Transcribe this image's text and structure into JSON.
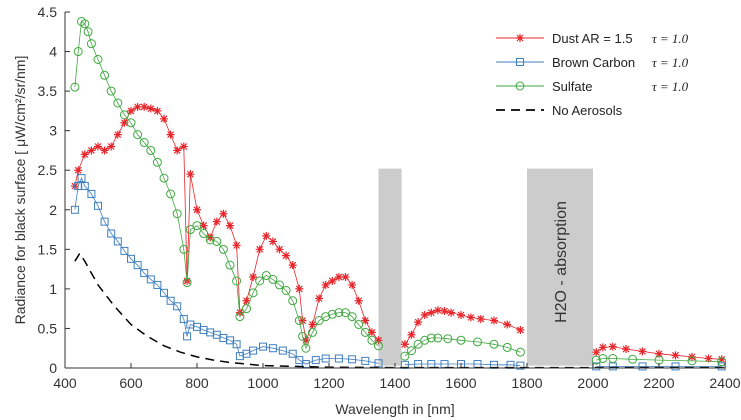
{
  "chart_data": {
    "type": "scatter",
    "title": "",
    "xlabel": "Wavelength in [nm]",
    "ylabel": "Radiance for black surface [ μW/cm²/sr/nm]",
    "xlim": [
      400,
      2400
    ],
    "ylim": [
      0,
      4.5
    ],
    "xticks": [
      400,
      600,
      800,
      1000,
      1200,
      1400,
      1600,
      1800,
      2000,
      2200,
      2400
    ],
    "yticks": [
      0,
      0.5,
      1,
      1.5,
      2,
      2.5,
      3,
      3.5,
      4,
      4.5
    ],
    "grid": false,
    "legend_position": "top-right",
    "legend": [
      {
        "label": "Dust AR = 1.5",
        "tau": "τ = 1.0"
      },
      {
        "label": "Brown Carbon",
        "tau": "τ = 1.0"
      },
      {
        "label": "Sulfate",
        "tau": "τ = 1.0"
      },
      {
        "label": "No Aerosols",
        "tau": ""
      }
    ],
    "annotation": "H2O - absorption",
    "absorption_bands": [
      [
        1350,
        1420
      ],
      [
        1800,
        2000
      ]
    ],
    "series": [
      {
        "name": "Dust AR = 1.5",
        "color": "#e8252b",
        "marker": "star",
        "line": "solid",
        "points": [
          [
            430,
            2.3
          ],
          [
            440,
            2.5
          ],
          [
            460,
            2.7
          ],
          [
            480,
            2.75
          ],
          [
            500,
            2.8
          ],
          [
            520,
            2.75
          ],
          [
            540,
            2.8
          ],
          [
            560,
            2.95
          ],
          [
            580,
            3.1
          ],
          [
            600,
            3.25
          ],
          [
            620,
            3.3
          ],
          [
            640,
            3.3
          ],
          [
            660,
            3.28
          ],
          [
            680,
            3.25
          ],
          [
            700,
            3.15
          ],
          [
            720,
            2.95
          ],
          [
            740,
            2.75
          ],
          [
            760,
            2.8
          ],
          [
            770,
            1.1
          ],
          [
            780,
            2.45
          ],
          [
            800,
            2.0
          ],
          [
            820,
            1.8
          ],
          [
            840,
            1.65
          ],
          [
            860,
            1.85
          ],
          [
            880,
            1.95
          ],
          [
            900,
            1.8
          ],
          [
            920,
            1.55
          ],
          [
            930,
            0.7
          ],
          [
            950,
            0.85
          ],
          [
            970,
            1.15
          ],
          [
            990,
            1.5
          ],
          [
            1010,
            1.67
          ],
          [
            1030,
            1.6
          ],
          [
            1050,
            1.5
          ],
          [
            1070,
            1.42
          ],
          [
            1090,
            1.3
          ],
          [
            1110,
            1.0
          ],
          [
            1120,
            0.6
          ],
          [
            1130,
            0.35
          ],
          [
            1150,
            0.55
          ],
          [
            1170,
            0.88
          ],
          [
            1190,
            1.05
          ],
          [
            1210,
            1.1
          ],
          [
            1230,
            1.15
          ],
          [
            1250,
            1.15
          ],
          [
            1270,
            1.05
          ],
          [
            1290,
            0.85
          ],
          [
            1310,
            0.6
          ],
          [
            1330,
            0.45
          ],
          [
            1350,
            0.35
          ],
          [
            1430,
            0.3
          ],
          [
            1450,
            0.42
          ],
          [
            1470,
            0.58
          ],
          [
            1490,
            0.67
          ],
          [
            1510,
            0.7
          ],
          [
            1530,
            0.73
          ],
          [
            1550,
            0.72
          ],
          [
            1570,
            0.7
          ],
          [
            1600,
            0.67
          ],
          [
            1630,
            0.64
          ],
          [
            1660,
            0.62
          ],
          [
            1700,
            0.6
          ],
          [
            1740,
            0.55
          ],
          [
            1780,
            0.48
          ],
          [
            2010,
            0.2
          ],
          [
            2030,
            0.26
          ],
          [
            2060,
            0.27
          ],
          [
            2100,
            0.24
          ],
          [
            2150,
            0.21
          ],
          [
            2200,
            0.18
          ],
          [
            2250,
            0.16
          ],
          [
            2300,
            0.14
          ],
          [
            2350,
            0.12
          ],
          [
            2390,
            0.11
          ]
        ]
      },
      {
        "name": "Brown Carbon",
        "color": "#3f7fc0",
        "marker": "square",
        "line": "solid",
        "points": [
          [
            430,
            2.0
          ],
          [
            440,
            2.3
          ],
          [
            450,
            2.4
          ],
          [
            460,
            2.3
          ],
          [
            480,
            2.2
          ],
          [
            500,
            2.05
          ],
          [
            520,
            1.85
          ],
          [
            540,
            1.7
          ],
          [
            560,
            1.6
          ],
          [
            580,
            1.48
          ],
          [
            600,
            1.38
          ],
          [
            620,
            1.3
          ],
          [
            640,
            1.2
          ],
          [
            660,
            1.12
          ],
          [
            680,
            1.05
          ],
          [
            700,
            0.95
          ],
          [
            720,
            0.85
          ],
          [
            740,
            0.78
          ],
          [
            760,
            0.62
          ],
          [
            770,
            0.4
          ],
          [
            780,
            0.55
          ],
          [
            800,
            0.52
          ],
          [
            820,
            0.48
          ],
          [
            840,
            0.45
          ],
          [
            860,
            0.42
          ],
          [
            880,
            0.38
          ],
          [
            900,
            0.35
          ],
          [
            920,
            0.3
          ],
          [
            930,
            0.15
          ],
          [
            950,
            0.18
          ],
          [
            970,
            0.22
          ],
          [
            1000,
            0.27
          ],
          [
            1030,
            0.25
          ],
          [
            1060,
            0.22
          ],
          [
            1090,
            0.18
          ],
          [
            1110,
            0.1
          ],
          [
            1130,
            0.05
          ],
          [
            1160,
            0.1
          ],
          [
            1190,
            0.12
          ],
          [
            1230,
            0.12
          ],
          [
            1270,
            0.11
          ],
          [
            1310,
            0.09
          ],
          [
            1350,
            0.06
          ],
          [
            1430,
            0.04
          ],
          [
            1470,
            0.05
          ],
          [
            1510,
            0.05
          ],
          [
            1550,
            0.05
          ],
          [
            1600,
            0.05
          ],
          [
            1650,
            0.05
          ],
          [
            1700,
            0.04
          ],
          [
            1750,
            0.04
          ],
          [
            1780,
            0.03
          ],
          [
            2010,
            0.02
          ],
          [
            2060,
            0.02
          ],
          [
            2150,
            0.02
          ],
          [
            2250,
            0.02
          ],
          [
            2390,
            0.02
          ]
        ]
      },
      {
        "name": "Sulfate",
        "color": "#3fa83f",
        "marker": "circle",
        "line": "solid",
        "points": [
          [
            430,
            3.55
          ],
          [
            440,
            4.0
          ],
          [
            450,
            4.38
          ],
          [
            460,
            4.35
          ],
          [
            470,
            4.25
          ],
          [
            480,
            4.1
          ],
          [
            500,
            3.9
          ],
          [
            520,
            3.7
          ],
          [
            540,
            3.5
          ],
          [
            560,
            3.35
          ],
          [
            580,
            3.2
          ],
          [
            600,
            3.1
          ],
          [
            620,
            2.95
          ],
          [
            640,
            2.85
          ],
          [
            660,
            2.75
          ],
          [
            680,
            2.6
          ],
          [
            700,
            2.4
          ],
          [
            720,
            2.2
          ],
          [
            740,
            1.95
          ],
          [
            760,
            1.5
          ],
          [
            770,
            1.08
          ],
          [
            780,
            1.75
          ],
          [
            800,
            1.8
          ],
          [
            820,
            1.7
          ],
          [
            840,
            1.62
          ],
          [
            860,
            1.6
          ],
          [
            880,
            1.5
          ],
          [
            900,
            1.3
          ],
          [
            920,
            1.1
          ],
          [
            930,
            0.65
          ],
          [
            950,
            0.75
          ],
          [
            970,
            0.95
          ],
          [
            990,
            1.1
          ],
          [
            1010,
            1.17
          ],
          [
            1030,
            1.12
          ],
          [
            1050,
            1.05
          ],
          [
            1070,
            0.98
          ],
          [
            1090,
            0.85
          ],
          [
            1110,
            0.6
          ],
          [
            1120,
            0.4
          ],
          [
            1130,
            0.25
          ],
          [
            1150,
            0.45
          ],
          [
            1170,
            0.6
          ],
          [
            1190,
            0.65
          ],
          [
            1210,
            0.68
          ],
          [
            1230,
            0.7
          ],
          [
            1250,
            0.7
          ],
          [
            1270,
            0.65
          ],
          [
            1290,
            0.55
          ],
          [
            1310,
            0.45
          ],
          [
            1330,
            0.35
          ],
          [
            1350,
            0.28
          ],
          [
            1430,
            0.15
          ],
          [
            1450,
            0.22
          ],
          [
            1470,
            0.3
          ],
          [
            1490,
            0.35
          ],
          [
            1510,
            0.38
          ],
          [
            1530,
            0.38
          ],
          [
            1560,
            0.37
          ],
          [
            1600,
            0.35
          ],
          [
            1650,
            0.33
          ],
          [
            1700,
            0.3
          ],
          [
            1740,
            0.26
          ],
          [
            1780,
            0.2
          ],
          [
            2010,
            0.1
          ],
          [
            2030,
            0.12
          ],
          [
            2060,
            0.12
          ],
          [
            2120,
            0.11
          ],
          [
            2200,
            0.1
          ],
          [
            2300,
            0.09
          ],
          [
            2390,
            0.08
          ]
        ]
      },
      {
        "name": "No Aerosols",
        "color": "#000000",
        "marker": "none",
        "line": "dashed",
        "points": [
          [
            430,
            1.35
          ],
          [
            445,
            1.45
          ],
          [
            460,
            1.35
          ],
          [
            480,
            1.2
          ],
          [
            500,
            1.05
          ],
          [
            550,
            0.78
          ],
          [
            600,
            0.55
          ],
          [
            650,
            0.4
          ],
          [
            700,
            0.28
          ],
          [
            750,
            0.2
          ],
          [
            800,
            0.14
          ],
          [
            850,
            0.1
          ],
          [
            900,
            0.07
          ],
          [
            950,
            0.05
          ],
          [
            1000,
            0.03
          ],
          [
            1100,
            0.02
          ],
          [
            1200,
            0.01
          ],
          [
            1400,
            0.005
          ],
          [
            1600,
            0.005
          ],
          [
            1800,
            0.005
          ],
          [
            2000,
            0.005
          ],
          [
            2200,
            0.005
          ],
          [
            2400,
            0.005
          ]
        ]
      }
    ]
  }
}
